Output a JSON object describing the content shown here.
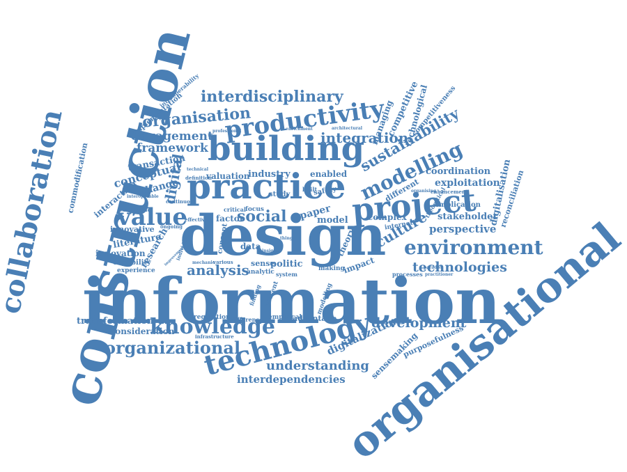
{
  "color": "#4a7fb5",
  "words": [
    "information",
    "design",
    "practice",
    "building",
    "construction",
    "organisational",
    "collaboration",
    "project",
    "technology",
    "knowledge",
    "productivity",
    "value",
    "modelling",
    "environment",
    "interdisciplinary",
    "organisation",
    "integration",
    "sustainability",
    "organizational",
    "development",
    "technologies",
    "understanding",
    "interdependencies",
    "social",
    "analysis",
    "culture",
    "digital",
    "engagement",
    "framework",
    "transformation",
    "consideration",
    "conceptual",
    "transaction",
    "coordination",
    "exploitation",
    "stakeholder",
    "perspective",
    "digitalisation",
    "reconciliation",
    "digitalization",
    "sensemaking",
    "purposefulness",
    "competitive",
    "technological",
    "competitiveness",
    "managing",
    "commodification",
    "implementation",
    "interoperability",
    "innovation",
    "capability",
    "experience",
    "literature",
    "innovative",
    "interaction",
    "change",
    "research",
    "industry",
    "valuation",
    "enabled",
    "different",
    "complex",
    "implication",
    "politic",
    "impact",
    "factor",
    "model",
    "paper",
    "theory",
    "data",
    "concept",
    "advantage",
    "empirical",
    "regulation",
    "modeling",
    "internet",
    "making",
    "sense",
    "analytic",
    "system",
    "present",
    "finding",
    "difference",
    "infrastructure",
    "processes",
    "theoretical",
    "enhancement",
    "organising",
    "architectural",
    "enrichment",
    "safety",
    "study",
    "built",
    "focus",
    "critical",
    "continuous",
    "sustainable",
    "interoperable",
    "definition",
    "technical",
    "professional",
    "ongoing",
    "effective",
    "various",
    "individual",
    "paradox",
    "practitioner",
    "thing",
    "insight",
    "mechanic",
    "improvement"
  ]
}
